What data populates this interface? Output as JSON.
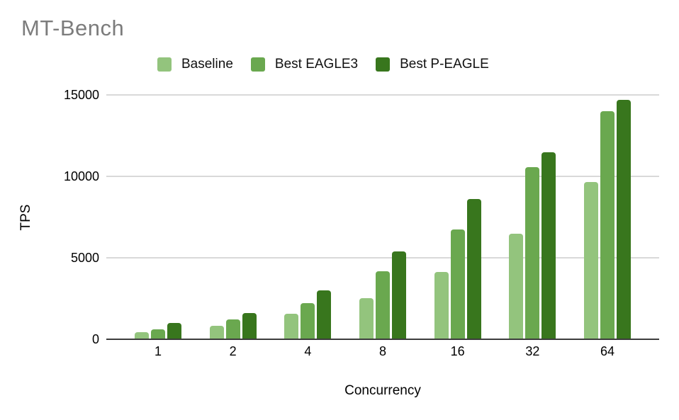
{
  "title": "MT-Bench",
  "chart_data": {
    "type": "bar",
    "title": "MT-Bench",
    "xlabel": "Concurrency",
    "ylabel": "TPS",
    "categories": [
      "1",
      "2",
      "4",
      "8",
      "16",
      "32",
      "64"
    ],
    "series": [
      {
        "name": "Baseline",
        "color": "#93c47d",
        "values": [
          450,
          830,
          1550,
          2510,
          4150,
          6480,
          9660
        ]
      },
      {
        "name": "Best EAGLE3",
        "color": "#6aa84f",
        "values": [
          620,
          1220,
          2200,
          4190,
          6750,
          10560,
          14000
        ]
      },
      {
        "name": "Best P-EAGLE",
        "color": "#38761d",
        "values": [
          980,
          1610,
          3020,
          5410,
          8620,
          11460,
          14690
        ]
      }
    ],
    "ylim": [
      0,
      15000
    ],
    "yticks": [
      0,
      5000,
      10000,
      15000
    ],
    "grid": true,
    "legend_position": "top"
  },
  "colors": {
    "title_text": "#7c7c7c",
    "axis_line": "#3c3c3c",
    "gridline": "#d9d9d9",
    "tick_text": "#000000",
    "background": "#ffffff"
  }
}
